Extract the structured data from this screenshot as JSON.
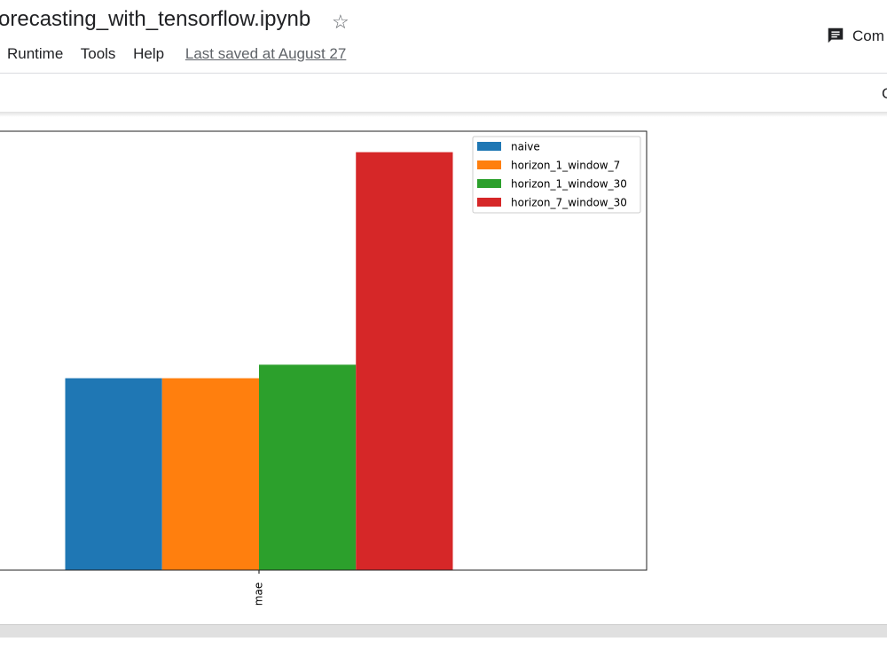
{
  "header": {
    "title": "orecasting_with_tensorflow.ipynb",
    "menu": [
      "Runtime",
      "Tools",
      "Help"
    ],
    "last_saved": "Last saved at August 27",
    "comment": "Com"
  },
  "toolbar": {
    "right": "C"
  },
  "chart_data": {
    "type": "bar",
    "categories": [
      "mae"
    ],
    "ylim": [
      0,
      1299
    ],
    "series": [
      {
        "name": "naive",
        "color": "#1f77b4",
        "values": [
          568
        ]
      },
      {
        "name": "horizon_1_window_7",
        "color": "#ff7f0e",
        "values": [
          568
        ]
      },
      {
        "name": "horizon_1_window_30",
        "color": "#2ca02c",
        "values": [
          608
        ]
      },
      {
        "name": "horizon_7_window_30",
        "color": "#d62728",
        "values": [
          1237
        ]
      }
    ],
    "legend": "upper right"
  }
}
